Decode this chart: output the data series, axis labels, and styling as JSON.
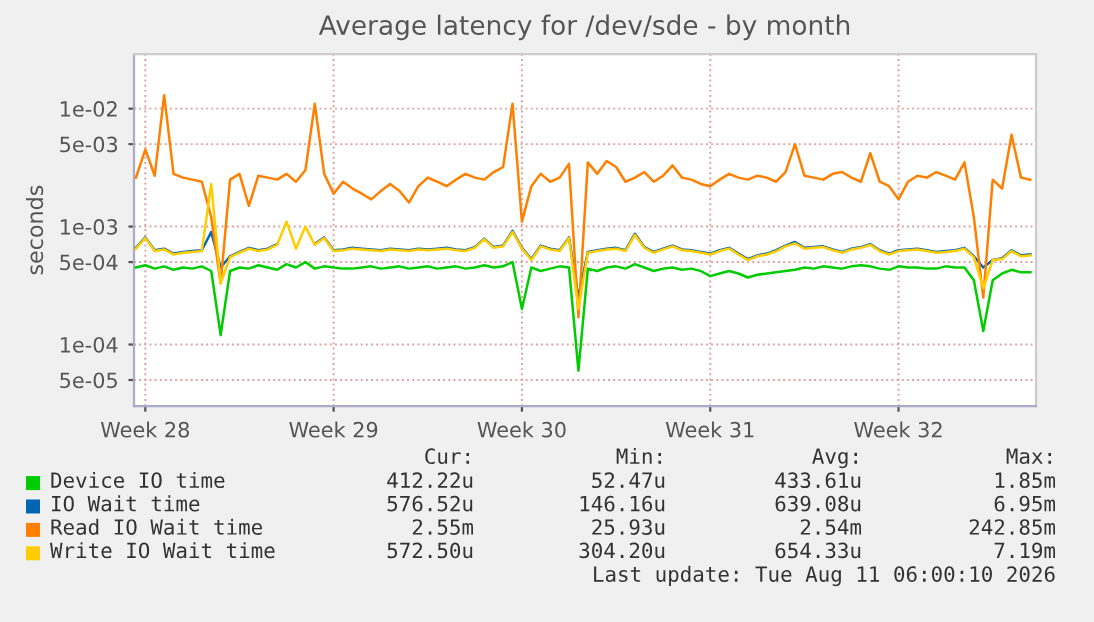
{
  "chart_data": {
    "type": "line",
    "title": "Average latency for /dev/sde - by month",
    "ylabel": "seconds",
    "categories": [
      null,
      "Week 28",
      null,
      null,
      null,
      null,
      null,
      null,
      null,
      null,
      null,
      null,
      null,
      null,
      null,
      null,
      null,
      null,
      null,
      null,
      null,
      "Week 29",
      null,
      null,
      null,
      null,
      null,
      null,
      null,
      null,
      null,
      null,
      null,
      null,
      null,
      null,
      null,
      null,
      null,
      null,
      null,
      "Week 30",
      null,
      null,
      null,
      null,
      null,
      null,
      null,
      null,
      null,
      null,
      null,
      null,
      null,
      null,
      null,
      null,
      null,
      null,
      null,
      "Week 31",
      null,
      null,
      null,
      null,
      null,
      null,
      null,
      null,
      null,
      null,
      null,
      null,
      null,
      null,
      null,
      null,
      null,
      null,
      null,
      "Week 32",
      null,
      null,
      null,
      null,
      null,
      null,
      null,
      null,
      null,
      null,
      null,
      null,
      null,
      null
    ],
    "series": [
      {
        "name": "Device IO time",
        "color": "#00cc00",
        "values": [
          0.00045,
          0.00047,
          0.00044,
          0.00046,
          0.00043,
          0.00045,
          0.00044,
          0.00046,
          0.00042,
          0.00012,
          0.00042,
          0.00045,
          0.00044,
          0.00047,
          0.00045,
          0.00043,
          0.00048,
          0.00045,
          0.0005,
          0.00044,
          0.00046,
          0.00045,
          0.00044,
          0.00044,
          0.00045,
          0.00046,
          0.00044,
          0.00045,
          0.00046,
          0.00044,
          0.00045,
          0.00046,
          0.00044,
          0.00045,
          0.00046,
          0.00044,
          0.00045,
          0.00047,
          0.00045,
          0.00046,
          0.0005,
          0.0002,
          0.00045,
          0.00042,
          0.00044,
          0.00046,
          0.00045,
          6e-05,
          0.00044,
          0.00042,
          0.00045,
          0.00046,
          0.00044,
          0.00048,
          0.00045,
          0.00042,
          0.00044,
          0.00045,
          0.00043,
          0.00044,
          0.00042,
          0.00038,
          0.0004,
          0.00042,
          0.0004,
          0.00037,
          0.00039,
          0.0004,
          0.00041,
          0.00042,
          0.00043,
          0.00045,
          0.00044,
          0.00046,
          0.00045,
          0.00044,
          0.00046,
          0.00047,
          0.00046,
          0.00044,
          0.00043,
          0.00046,
          0.00045,
          0.00045,
          0.00044,
          0.00044,
          0.00046,
          0.00045,
          0.00045,
          0.00035,
          0.00013,
          0.00035,
          0.0004,
          0.00043,
          0.00041,
          0.00041
        ]
      },
      {
        "name": "IO Wait time",
        "color": "#0066b3",
        "values": [
          0.00066,
          0.00081,
          0.00063,
          0.00065,
          0.00059,
          0.00061,
          0.00062,
          0.00063,
          0.0009,
          0.00045,
          0.00056,
          0.00061,
          0.00066,
          0.00063,
          0.00065,
          0.00071,
          null,
          null,
          null,
          0.00071,
          0.00081,
          0.00063,
          0.00064,
          0.00066,
          0.00065,
          0.00064,
          0.00063,
          0.00065,
          0.00064,
          0.00063,
          0.00065,
          0.00064,
          0.00065,
          0.00066,
          0.00064,
          0.00063,
          0.00067,
          0.00079,
          0.00067,
          0.00069,
          0.00092,
          0.00066,
          0.00053,
          0.00069,
          0.00065,
          0.00063,
          0.00081,
          0.00025,
          0.00061,
          0.00063,
          0.00065,
          0.00066,
          0.00063,
          0.00087,
          0.00067,
          0.00061,
          0.00065,
          0.00069,
          0.00064,
          0.00063,
          0.00061,
          0.00059,
          0.00063,
          0.00066,
          0.00059,
          0.00053,
          0.00057,
          0.00059,
          0.00063,
          0.00069,
          0.00074,
          0.00066,
          0.00067,
          0.00068,
          0.00064,
          0.00061,
          0.00065,
          0.00067,
          0.00071,
          0.00063,
          0.00059,
          0.00063,
          0.00064,
          0.00065,
          0.00063,
          0.00061,
          0.00062,
          0.00063,
          0.00066,
          0.00056,
          0.00045,
          0.00052,
          0.00054,
          0.00063,
          0.00057,
          0.00058
        ]
      },
      {
        "name": "Read IO Wait time",
        "color": "#ff8000",
        "values": [
          0.0026,
          0.0045,
          0.0027,
          0.013,
          0.0028,
          0.0026,
          0.0025,
          0.0024,
          0.0012,
          0.00033,
          0.0025,
          0.0028,
          0.0015,
          0.0027,
          0.0026,
          0.0025,
          0.0028,
          0.0024,
          0.003,
          0.011,
          0.0028,
          0.0019,
          0.0024,
          0.0021,
          0.0019,
          0.0017,
          0.002,
          0.0023,
          0.002,
          0.0016,
          0.0022,
          0.0026,
          0.0024,
          0.0022,
          0.0025,
          0.0028,
          0.0026,
          0.0025,
          0.0029,
          0.0032,
          0.011,
          0.0011,
          0.0022,
          0.0028,
          0.0024,
          0.0026,
          0.0034,
          0.00017,
          0.0035,
          0.0028,
          0.0036,
          0.0032,
          0.0024,
          0.0026,
          0.0029,
          0.0024,
          0.0027,
          0.0033,
          0.0026,
          0.0025,
          0.0023,
          0.0022,
          0.0025,
          0.0028,
          0.0026,
          0.0025,
          0.0027,
          0.0026,
          0.0024,
          0.0029,
          0.005,
          0.0027,
          0.0026,
          0.0025,
          0.0028,
          0.0029,
          0.0026,
          0.0024,
          0.0042,
          0.0024,
          0.0022,
          0.0017,
          0.0024,
          0.0027,
          0.0026,
          0.0029,
          0.0027,
          0.0025,
          0.0035,
          0.0012,
          0.00025,
          0.0025,
          0.0021,
          0.006,
          0.0026,
          0.0025
        ]
      },
      {
        "name": "Write IO Wait time",
        "color": "#ffcc00",
        "values": [
          0.00065,
          0.0008,
          0.00062,
          0.00064,
          0.00058,
          0.0006,
          0.00061,
          0.00062,
          0.0023,
          0.00033,
          0.00055,
          0.0006,
          0.00065,
          0.00062,
          0.00064,
          0.0007,
          0.0011,
          0.00065,
          0.001,
          0.0007,
          0.0008,
          0.00062,
          0.00063,
          0.00065,
          0.00064,
          0.00063,
          0.00062,
          0.00064,
          0.00063,
          0.00062,
          0.00064,
          0.00063,
          0.00064,
          0.00065,
          0.00063,
          0.00062,
          0.00066,
          0.00078,
          0.00066,
          0.00068,
          0.0009,
          0.00065,
          0.00052,
          0.00068,
          0.00064,
          0.00062,
          0.0008,
          0.0002,
          0.0006,
          0.00062,
          0.00064,
          0.00065,
          0.00062,
          0.00085,
          0.00066,
          0.0006,
          0.00064,
          0.00068,
          0.00063,
          0.00062,
          0.0006,
          0.00058,
          0.00062,
          0.00065,
          0.00058,
          0.00052,
          0.00056,
          0.00058,
          0.00062,
          0.00068,
          0.00072,
          0.00065,
          0.00066,
          0.00067,
          0.00063,
          0.0006,
          0.00064,
          0.00066,
          0.0007,
          0.00062,
          0.00058,
          0.00062,
          0.00063,
          0.00064,
          0.00062,
          0.0006,
          0.00061,
          0.00062,
          0.00065,
          0.00055,
          0.0003,
          0.00052,
          0.00053,
          0.00062,
          0.00056,
          0.00057
        ]
      }
    ],
    "log": "y",
    "ylim": [
      3e-05,
      0.029
    ],
    "yticks": [
      {
        "value": 5e-05,
        "label": "5e-05"
      },
      {
        "value": 0.0001,
        "label": "1e-04"
      },
      {
        "value": 0.0005,
        "label": "5e-04"
      },
      {
        "value": 0.001,
        "label": "1e-03"
      },
      {
        "value": 0.005,
        "label": "5e-03"
      },
      {
        "value": 0.01,
        "label": "1e-02"
      }
    ],
    "grid": true,
    "marker": "none",
    "line_style": "solid",
    "legend": "bottom",
    "annotations": [
      "Cur:",
      "Min:",
      "Avg:",
      "Max:",
      "412.22u",
      "52.47u",
      "433.61u",
      "1.85m",
      "576.52u",
      "146.16u",
      "639.08u",
      "6.95m",
      "2.55m",
      "25.93u",
      "2.54m",
      "242.85m",
      "572.50u",
      "304.20u",
      "654.33u",
      "7.19m",
      "Last update: Tue Aug 11 06:00:10 2026"
    ]
  }
}
